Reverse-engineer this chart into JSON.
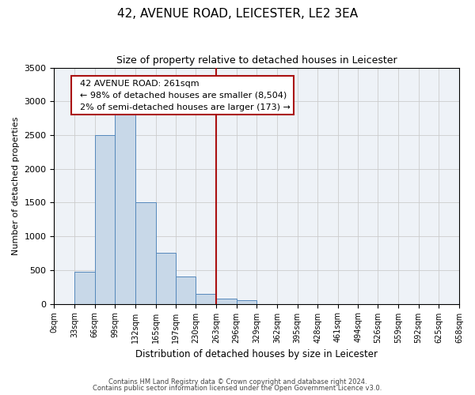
{
  "title": "42, AVENUE ROAD, LEICESTER, LE2 3EA",
  "subtitle": "Size of property relative to detached houses in Leicester",
  "xlabel": "Distribution of detached houses by size in Leicester",
  "ylabel": "Number of detached properties",
  "bin_edges": [
    0,
    33,
    66,
    99,
    132,
    165,
    197,
    230,
    263,
    296,
    329,
    362,
    395,
    428,
    461,
    494,
    526,
    559,
    592,
    625,
    658
  ],
  "bar_heights": [
    0,
    480,
    2500,
    2800,
    1500,
    750,
    400,
    150,
    75,
    50,
    0,
    0,
    0,
    0,
    0,
    0,
    0,
    0,
    0,
    0
  ],
  "bar_facecolor": "#c8d8e8",
  "bar_edgecolor": "#5588bb",
  "grid_color": "#cccccc",
  "vline_x": 263,
  "vline_color": "#aa1111",
  "annotation_box_edgecolor": "#aa1111",
  "annotation_title": "42 AVENUE ROAD: 261sqm",
  "annotation_line1": "← 98% of detached houses are smaller (8,504)",
  "annotation_line2": "2% of semi-detached houses are larger (173) →",
  "ylim": [
    0,
    3500
  ],
  "yticks": [
    0,
    500,
    1000,
    1500,
    2000,
    2500,
    3000,
    3500
  ],
  "footnote1": "Contains HM Land Registry data © Crown copyright and database right 2024.",
  "footnote2": "Contains public sector information licensed under the Open Government Licence v3.0.",
  "background_color": "#eef2f7",
  "title_fontsize": 11,
  "subtitle_fontsize": 9
}
